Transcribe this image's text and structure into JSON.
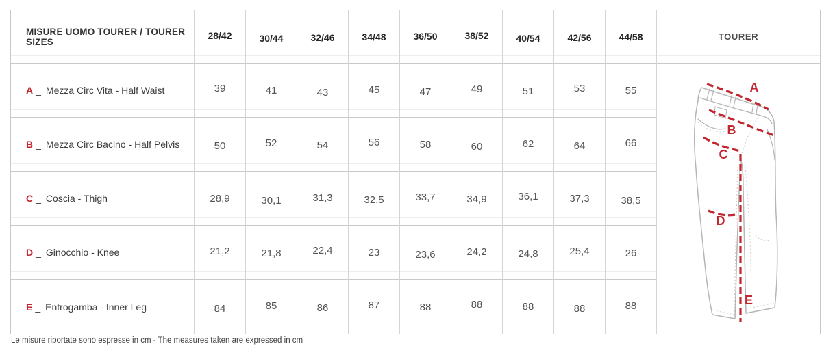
{
  "table": {
    "header_label": "MISURE UOMO TOURER / TOURER SIZES",
    "image_column_label": "TOURER",
    "letter_separator": "_",
    "sizes": [
      "28/42",
      "30/44",
      "32/46",
      "34/48",
      "36/50",
      "38/52",
      "40/54",
      "42/56",
      "44/58"
    ],
    "rows": [
      {
        "letter": "A",
        "label": "Mezza Circ Vita - Half Waist",
        "values": [
          "39",
          "41",
          "43",
          "45",
          "47",
          "49",
          "51",
          "53",
          "55"
        ]
      },
      {
        "letter": "B",
        "label": "Mezza Circ Bacino - Half Pelvis",
        "values": [
          "50",
          "52",
          "54",
          "56",
          "58",
          "60",
          "62",
          "64",
          "66"
        ]
      },
      {
        "letter": "C",
        "label": "Coscia - Thigh",
        "values": [
          "28,9",
          "30,1",
          "31,3",
          "32,5",
          "33,7",
          "34,9",
          "36,1",
          "37,3",
          "38,5"
        ]
      },
      {
        "letter": "D",
        "label": "Ginocchio - Knee",
        "values": [
          "21,2",
          "21,8",
          "22,4",
          "23",
          "23,6",
          "24,2",
          "24,8",
          "25,4",
          "26"
        ]
      },
      {
        "letter": "E",
        "label": "Entrogamba - Inner Leg",
        "values": [
          "84",
          "85",
          "86",
          "87",
          "88",
          "88",
          "88",
          "88",
          "88"
        ]
      }
    ]
  },
  "diagram": {
    "labels": [
      "A",
      "B",
      "C",
      "D",
      "E"
    ],
    "accent_color": "#c2262e",
    "outline_color": "#b5b5b5"
  },
  "footer": {
    "note": "Le misure riportate sono espresse in cm - The measures taken are expressed in cm"
  }
}
